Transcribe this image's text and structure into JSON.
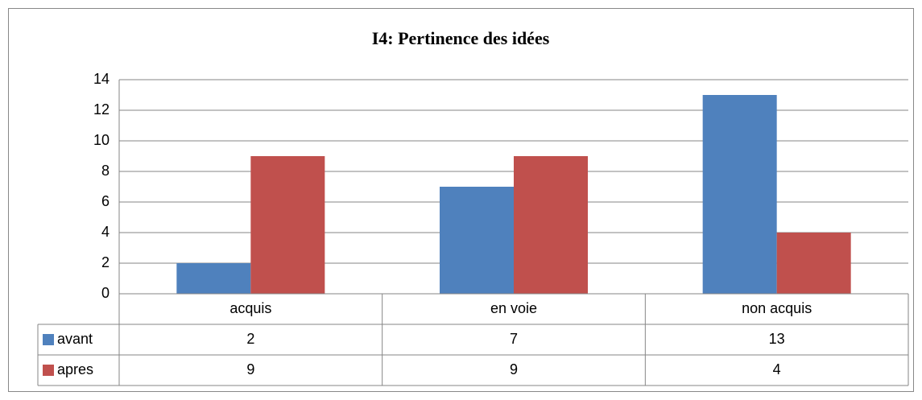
{
  "chart_data": {
    "type": "bar",
    "title": "I4: Pertinence des idées",
    "categories": [
      "acquis",
      "en voie",
      "non acquis"
    ],
    "series": [
      {
        "name": "avant",
        "color": "#4f81bd",
        "values": [
          2,
          7,
          13
        ]
      },
      {
        "name": "apres",
        "color": "#c0504d",
        "values": [
          9,
          9,
          4
        ]
      }
    ],
    "ylim": [
      0,
      14
    ],
    "yticks": [
      0,
      2,
      4,
      6,
      8,
      10,
      12,
      14
    ],
    "grid": true,
    "data_table": true
  }
}
